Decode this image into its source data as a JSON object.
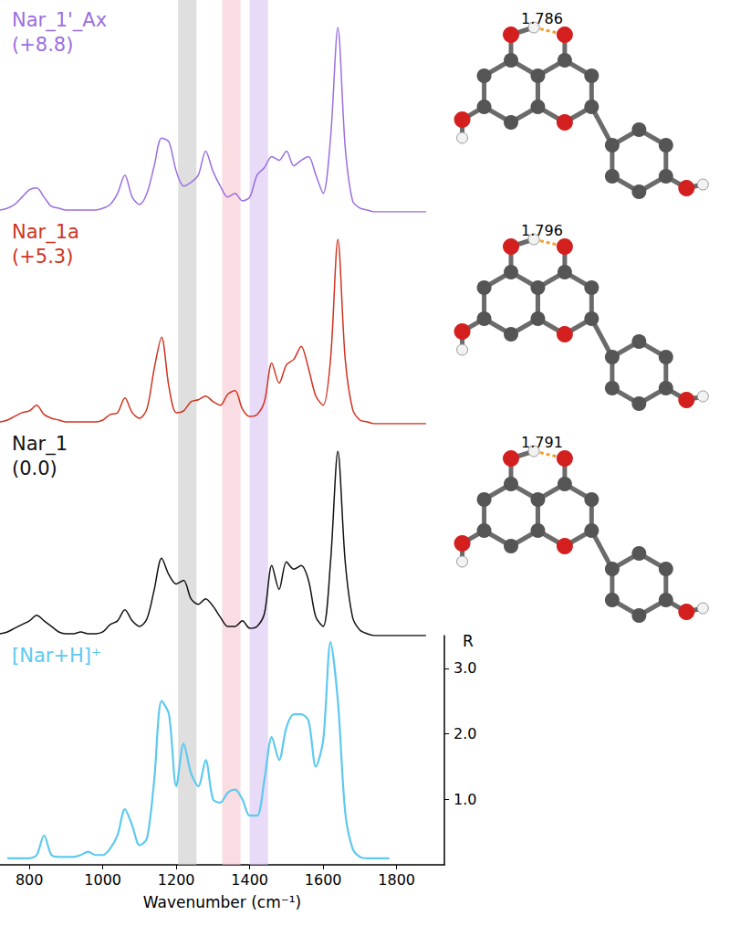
{
  "chart_data": [
    {
      "type": "line",
      "title": "Nar_1'_Ax",
      "subtitle": "(+8.8)",
      "color": "#9b6fe0",
      "tick_labels": false,
      "annotations": [
        "1.786"
      ],
      "xlim": [
        720,
        1930
      ],
      "ylim": [
        0,
        1.15
      ],
      "bands": [
        {
          "from": 1205,
          "to": 1255,
          "color": "#c9c9c9"
        },
        {
          "from": 1325,
          "to": 1375,
          "color": "#f6c6cf"
        },
        {
          "from": 1400,
          "to": 1450,
          "color": "#d7c3f2"
        }
      ],
      "x": [
        720,
        740,
        760,
        780,
        800,
        820,
        840,
        860,
        880,
        900,
        920,
        940,
        960,
        980,
        1000,
        1020,
        1040,
        1060,
        1080,
        1100,
        1120,
        1140,
        1160,
        1180,
        1200,
        1220,
        1240,
        1260,
        1280,
        1300,
        1320,
        1340,
        1360,
        1380,
        1400,
        1420,
        1440,
        1460,
        1480,
        1500,
        1520,
        1540,
        1560,
        1580,
        1600,
        1620,
        1640,
        1660,
        1680,
        1700,
        1720,
        1740,
        1760,
        1780,
        1800,
        1820,
        1840,
        1860,
        1880
      ],
      "values": [
        0.01,
        0.02,
        0.04,
        0.08,
        0.12,
        0.13,
        0.08,
        0.03,
        0.02,
        0.01,
        0.01,
        0.01,
        0.01,
        0.01,
        0.02,
        0.04,
        0.1,
        0.2,
        0.08,
        0.04,
        0.1,
        0.25,
        0.4,
        0.38,
        0.22,
        0.14,
        0.16,
        0.2,
        0.33,
        0.22,
        0.14,
        0.08,
        0.1,
        0.06,
        0.08,
        0.2,
        0.24,
        0.3,
        0.28,
        0.33,
        0.25,
        0.28,
        0.3,
        0.2,
        0.1,
        0.4,
        1.0,
        0.35,
        0.06,
        0.02,
        0.01,
        0,
        0,
        0,
        0,
        0,
        0,
        0,
        0
      ]
    },
    {
      "type": "line",
      "title": "Nar_1a",
      "subtitle": "(+5.3)",
      "color": "#d0331f",
      "tick_labels": false,
      "annotations": [
        "1.796"
      ],
      "xlim": [
        720,
        1930
      ],
      "ylim": [
        0,
        1.15
      ],
      "bands": [
        {
          "from": 1205,
          "to": 1255,
          "color": "#c9c9c9"
        },
        {
          "from": 1325,
          "to": 1375,
          "color": "#f6c6cf"
        },
        {
          "from": 1400,
          "to": 1450,
          "color": "#d7c3f2"
        }
      ],
      "x": [
        720,
        740,
        760,
        780,
        800,
        820,
        840,
        860,
        880,
        900,
        920,
        940,
        960,
        980,
        1000,
        1020,
        1040,
        1060,
        1080,
        1100,
        1120,
        1140,
        1160,
        1180,
        1200,
        1220,
        1240,
        1260,
        1280,
        1300,
        1320,
        1340,
        1360,
        1380,
        1400,
        1420,
        1440,
        1460,
        1480,
        1500,
        1520,
        1540,
        1560,
        1580,
        1600,
        1620,
        1640,
        1660,
        1680,
        1700,
        1720,
        1740,
        1760,
        1780,
        1800,
        1820,
        1840,
        1860,
        1880
      ],
      "values": [
        0.01,
        0.02,
        0.04,
        0.06,
        0.07,
        0.1,
        0.05,
        0.03,
        0.02,
        0.01,
        0.01,
        0.01,
        0.01,
        0.01,
        0.02,
        0.05,
        0.06,
        0.14,
        0.06,
        0.03,
        0.08,
        0.3,
        0.47,
        0.2,
        0.06,
        0.07,
        0.12,
        0.13,
        0.15,
        0.12,
        0.1,
        0.16,
        0.18,
        0.08,
        0.04,
        0.05,
        0.12,
        0.33,
        0.22,
        0.32,
        0.35,
        0.42,
        0.3,
        0.15,
        0.1,
        0.35,
        1.0,
        0.35,
        0.08,
        0.02,
        0.01,
        0,
        0,
        0,
        0,
        0,
        0,
        0,
        0
      ]
    },
    {
      "type": "line",
      "title": "Nar_1",
      "subtitle": "(0.0)",
      "color": "#111111",
      "tick_labels": false,
      "annotations": [
        "1.791"
      ],
      "xlim": [
        720,
        1930
      ],
      "ylim": [
        0,
        1.15
      ],
      "bands": [
        {
          "from": 1205,
          "to": 1255,
          "color": "#c9c9c9"
        },
        {
          "from": 1325,
          "to": 1375,
          "color": "#f6c6cf"
        },
        {
          "from": 1400,
          "to": 1450,
          "color": "#d7c3f2"
        }
      ],
      "x": [
        720,
        740,
        760,
        780,
        800,
        820,
        840,
        860,
        880,
        900,
        920,
        940,
        960,
        980,
        1000,
        1020,
        1040,
        1060,
        1080,
        1100,
        1120,
        1140,
        1160,
        1180,
        1200,
        1220,
        1240,
        1260,
        1280,
        1300,
        1320,
        1340,
        1360,
        1380,
        1400,
        1420,
        1440,
        1460,
        1480,
        1500,
        1520,
        1540,
        1560,
        1580,
        1600,
        1620,
        1640,
        1660,
        1680,
        1700,
        1720,
        1740,
        1760,
        1780,
        1800,
        1820,
        1840,
        1860,
        1880
      ],
      "values": [
        0.01,
        0.02,
        0.04,
        0.06,
        0.08,
        0.11,
        0.08,
        0.05,
        0.02,
        0.01,
        0.01,
        0.02,
        0.01,
        0.01,
        0.02,
        0.06,
        0.08,
        0.14,
        0.08,
        0.05,
        0.09,
        0.25,
        0.42,
        0.33,
        0.28,
        0.3,
        0.2,
        0.17,
        0.2,
        0.16,
        0.1,
        0.05,
        0.05,
        0.08,
        0.04,
        0.05,
        0.12,
        0.38,
        0.25,
        0.4,
        0.36,
        0.38,
        0.3,
        0.1,
        0.05,
        0.4,
        1.0,
        0.4,
        0.1,
        0.03,
        0.01,
        0,
        0,
        0,
        0,
        0,
        0,
        0,
        0
      ]
    },
    {
      "type": "line",
      "title": "[Nar+H]⁺",
      "color": "#5ec9f0",
      "xlabel": "Wavenumber (cm⁻¹)",
      "ylabel": "R",
      "xlim": [
        720,
        1930
      ],
      "xticks": [
        800,
        1000,
        1200,
        1400,
        1600,
        1800
      ],
      "ylim": [
        0,
        3.5
      ],
      "yticks": [
        {
          "value": 1,
          "label": "1.0"
        },
        {
          "value": 2,
          "label": "2.0"
        },
        {
          "value": 3,
          "label": "3.0"
        }
      ],
      "bands": [
        {
          "from": 1205,
          "to": 1255,
          "color": "#c9c9c9"
        },
        {
          "from": 1325,
          "to": 1375,
          "color": "#f6c6cf"
        },
        {
          "from": 1400,
          "to": 1450,
          "color": "#d7c3f2"
        }
      ],
      "x": [
        720,
        740,
        760,
        780,
        800,
        820,
        840,
        860,
        880,
        900,
        920,
        940,
        960,
        980,
        1000,
        1020,
        1040,
        1060,
        1080,
        1100,
        1120,
        1140,
        1160,
        1180,
        1200,
        1220,
        1240,
        1260,
        1280,
        1300,
        1320,
        1340,
        1360,
        1380,
        1400,
        1420,
        1440,
        1460,
        1480,
        1500,
        1520,
        1540,
        1560,
        1580,
        1600,
        1620,
        1640,
        1660,
        1680,
        1700,
        1720,
        1740,
        1760,
        1780,
        1800,
        1820,
        1840,
        1860,
        1880
      ],
      "values": [
        null,
        0.1,
        0.1,
        0.1,
        0.1,
        0.15,
        0.45,
        0.15,
        0.12,
        0.12,
        0.12,
        0.15,
        0.2,
        0.15,
        0.15,
        0.25,
        0.45,
        0.85,
        0.6,
        0.3,
        0.4,
        1.3,
        2.5,
        2.3,
        1.2,
        1.85,
        1.4,
        1.2,
        1.6,
        1.0,
        0.95,
        1.1,
        1.15,
        1.0,
        0.75,
        0.75,
        1.3,
        1.95,
        1.6,
        2.1,
        2.3,
        2.3,
        2.2,
        1.5,
        1.9,
        3.4,
        2.5,
        0.8,
        0.25,
        0.12,
        0.1,
        0.1,
        0.1,
        0.1,
        null,
        null,
        null,
        null,
        null
      ]
    }
  ]
}
